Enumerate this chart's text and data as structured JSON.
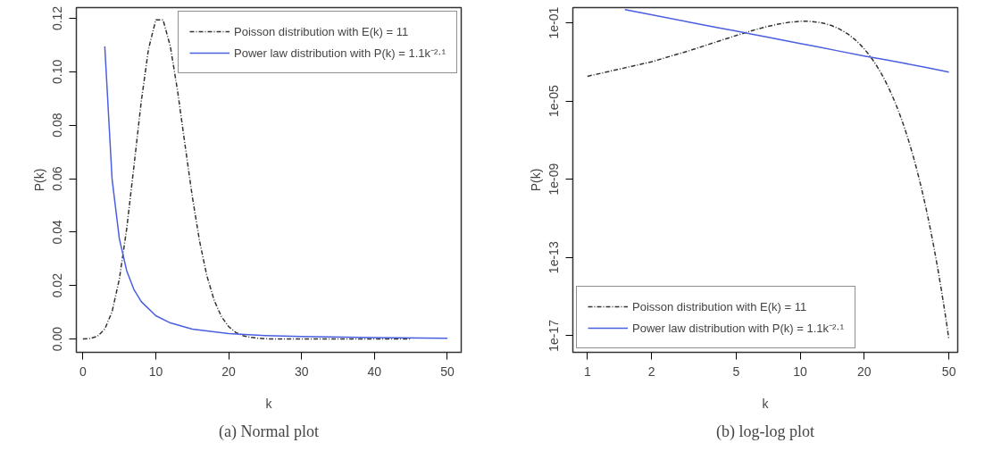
{
  "chart_data": [
    {
      "type": "line",
      "xlabel": "k",
      "ylabel": "P(k)",
      "xlim": [
        -0.9,
        51.9
      ],
      "ylim": [
        -0.005,
        0.124
      ],
      "xticks": [
        0,
        10,
        20,
        30,
        40,
        50
      ],
      "yticks": [
        {
          "value": 0,
          "label": "0.00"
        },
        {
          "value": 0.02,
          "label": "0.02"
        },
        {
          "value": 0.04,
          "label": "0.04"
        },
        {
          "value": 0.06,
          "label": "0.06"
        },
        {
          "value": 0.08,
          "label": "0.08"
        },
        {
          "value": 0.1,
          "label": "0.10"
        },
        {
          "value": 0.12,
          "label": "0.12"
        }
      ],
      "grid": false,
      "legend": "top right",
      "annotations": [
        "(a) Normal plot"
      ],
      "series": [
        {
          "name": "Poisson distribution with E(k) = 11",
          "color": "#333333",
          "line_style": "dashdot",
          "x": [
            0,
            1,
            2,
            3,
            4,
            5,
            6,
            7,
            8,
            9,
            10,
            11,
            12,
            13,
            14,
            15,
            16,
            17,
            18,
            19,
            20,
            21,
            22,
            23,
            24,
            25,
            26,
            27,
            28,
            29,
            30,
            31,
            32,
            33,
            34,
            35,
            36,
            37,
            38,
            39,
            40,
            41,
            42,
            43,
            44,
            45
          ],
          "values": [
            0,
            0.0002,
            0.001,
            0.0037,
            0.0102,
            0.0224,
            0.0411,
            0.0646,
            0.0888,
            0.1085,
            0.1194,
            0.1194,
            0.1094,
            0.0926,
            0.0728,
            0.0534,
            0.0367,
            0.0237,
            0.0145,
            0.0084,
            0.0046,
            0.0024,
            0.0012,
            0.0006,
            0.0003,
            0.0001,
            0,
            0,
            0,
            0,
            0,
            0,
            0,
            0,
            0,
            0,
            0,
            0,
            0,
            0,
            0,
            0,
            0,
            0,
            0,
            0
          ]
        },
        {
          "name": "Power law distribution with P(k) = 1.1k⁻²·¹",
          "color": "#4a5fe0",
          "line_style": "solid",
          "x": [
            3,
            4,
            5,
            6,
            7,
            8,
            10,
            12,
            15,
            20,
            25,
            30,
            40,
            50
          ],
          "values": [
            0.1095,
            0.0599,
            0.0375,
            0.0256,
            0.0185,
            0.014,
            0.0087,
            0.006,
            0.0037,
            0.002,
            0.0013,
            0.0009,
            0.0005,
            0.0003
          ]
        }
      ]
    },
    {
      "type": "line",
      "xlabel": "k",
      "ylabel": "P(k)",
      "log": "xy",
      "xlim": [
        0.854,
        55
      ],
      "ylim": [
        1.4e-18,
        0.6
      ],
      "xticks": [
        1,
        2,
        5,
        10,
        20,
        50
      ],
      "yticks": [
        {
          "value": 0.1,
          "label": "1e-01"
        },
        {
          "value": 1e-05,
          "label": "1e-05"
        },
        {
          "value": 1e-09,
          "label": "1e-09"
        },
        {
          "value": 1e-13,
          "label": "1e-13"
        },
        {
          "value": 1e-17,
          "label": "1e-17"
        }
      ],
      "grid": false,
      "legend": "bottom left",
      "annotations": [
        "(b) log-log plot"
      ],
      "series": [
        {
          "name": "Poisson distribution with E(k) = 11",
          "color": "#333333",
          "line_style": "dashdot",
          "x": [
            1,
            2,
            3,
            4,
            5,
            6,
            7,
            8,
            9,
            10,
            11,
            12,
            13,
            14,
            15,
            16,
            17,
            18,
            19,
            20,
            21,
            22,
            23,
            24,
            25,
            26,
            27,
            28,
            29,
            30,
            31,
            32,
            33,
            34,
            35,
            36,
            37,
            38,
            39,
            40,
            41,
            42,
            43,
            44,
            45,
            46,
            47,
            48,
            49,
            50
          ],
          "values": [
            0.000184,
            0.00101,
            0.00371,
            0.0102,
            0.0224,
            0.0411,
            0.0646,
            0.0888,
            0.1085,
            0.1194,
            0.1194,
            0.1094,
            0.0926,
            0.0728,
            0.0534,
            0.0367,
            0.0237,
            0.0145,
            0.0084,
            0.00462,
            0.00242,
            0.00121,
            0.000579,
            0.000265,
            0.000117,
            4.94e-05,
            2.01e-05,
            7.9e-06,
            3e-06,
            1.1e-06,
            3.9e-07,
            1.34e-07,
            4.47e-08,
            1.45e-08,
            4.54e-09,
            1.39e-09,
            4.13e-10,
            1.19e-10,
            3.37e-11,
            9.27e-12,
            2.49e-12,
            6.51e-13,
            1.67e-13,
            4.16e-14,
            1.02e-14,
            2.43e-15,
            5.7e-16,
            1.31e-16,
            2.93e-17,
            6.45e-18
          ]
        },
        {
          "name": "Power law distribution with P(k) = 1.1k⁻²·¹",
          "color": "#4a5fe0",
          "line_style": "solid",
          "x": [
            1.5,
            2,
            3,
            4,
            5,
            6,
            7,
            8,
            10,
            12,
            15,
            20,
            25,
            30,
            40,
            50
          ],
          "values": [
            0.47,
            0.257,
            0.1095,
            0.0599,
            0.0375,
            0.0256,
            0.0185,
            0.014,
            0.0087,
            0.006,
            0.0037,
            0.002,
            0.0013,
            0.0009,
            0.0005,
            0.0003
          ]
        }
      ]
    }
  ]
}
